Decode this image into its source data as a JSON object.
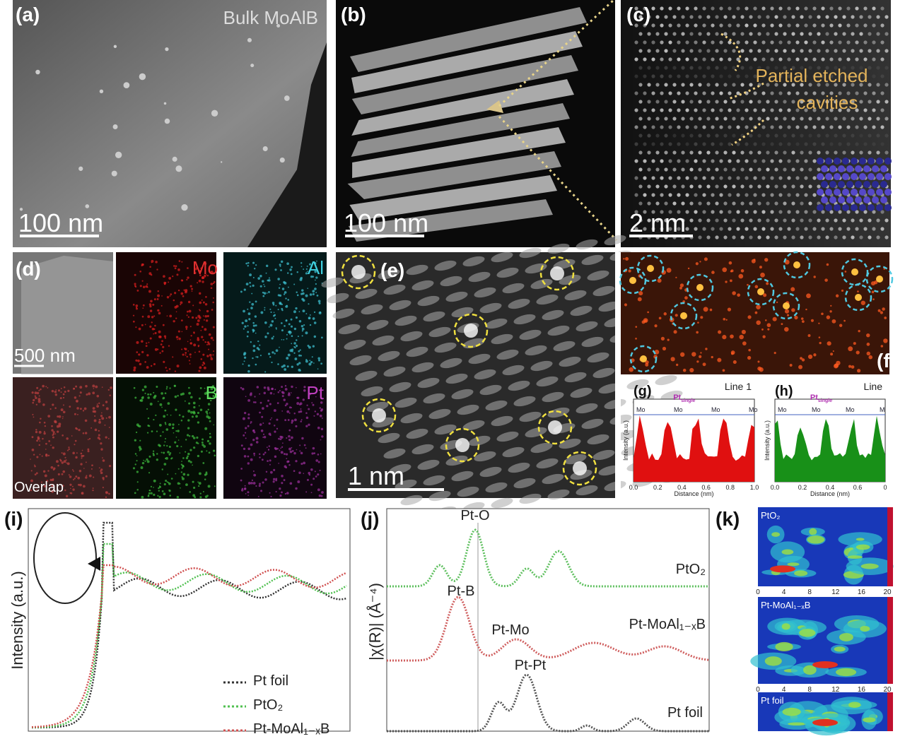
{
  "panels": {
    "a": {
      "label": "(a)",
      "title": "Bulk MoAlB",
      "scale_bar": "100 nm"
    },
    "b": {
      "label": "(b)",
      "scale_bar": "100 nm"
    },
    "c": {
      "label": "(c)",
      "annotation": [
        "Partial etched",
        "cavities"
      ],
      "scale_bar": "2 nm"
    },
    "d": {
      "label": "(d)",
      "scale_bar": "500 nm",
      "maps": [
        "Mo",
        "Al",
        "Overlap",
        "B",
        "Pt"
      ]
    },
    "e": {
      "label": "(e)",
      "scale_bar": "1 nm"
    },
    "f": {
      "label": "(f)"
    },
    "g": {
      "label": "(g)",
      "line": "Line 1",
      "peak": {
        "main": "Pt",
        "sub": "single"
      },
      "atoms": [
        "Mo",
        "Mo",
        "Mo",
        "Mo"
      ],
      "y_label": "Intensity (a.u.)",
      "x_label": "Distance (nm)",
      "xticks": [
        "0.0",
        "0.2",
        "0.4",
        "0.6",
        "0.8",
        "1.0"
      ]
    },
    "h": {
      "label": "(h)",
      "line": "Line",
      "peak": {
        "main": "Pt",
        "sub": "single"
      },
      "atoms": [
        "Mo",
        "Mo",
        "Mo",
        "M"
      ],
      "y_label": "Intensity (a.u.)",
      "x_label": "Distance (nm)",
      "xticks": [
        "0.0",
        "0.2",
        "0.4",
        "0.6",
        "0"
      ]
    },
    "i": {
      "label": "(i)",
      "y_label": "Intensity (a.u.)",
      "legend": [
        "Pt foil",
        "PtO₂",
        "Pt-MoAl₁₋ₓB"
      ]
    },
    "j": {
      "label": "(j)",
      "y_label": "|χ(R)| (Å⁻⁴)",
      "bonds": [
        "Pt-O",
        "Pt-B",
        "Pt-Mo",
        "Pt-Pt"
      ],
      "samples": [
        "PtO₂",
        "Pt-MoAl₁₋ₓB",
        "Pt foil"
      ]
    },
    "k": {
      "label": "(k)",
      "samples": [
        "PtO₂",
        "Pt-MoAl₁₋ₓB",
        "Pt foil"
      ],
      "xticks": [
        "0",
        "4",
        "8",
        "12",
        "16",
        "20"
      ]
    }
  }
}
